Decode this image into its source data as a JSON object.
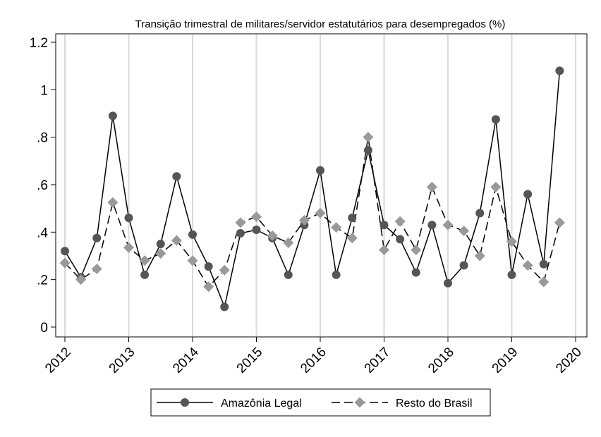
{
  "chart_data": {
    "type": "line",
    "title": "Transição trimestral de militares/servidor estatutários para desempregados (%)",
    "xlabel": "",
    "ylabel": "",
    "xlim": [
      2012,
      2020
    ],
    "ylim": [
      0,
      1.2
    ],
    "x_ticks": [
      2012,
      2013,
      2014,
      2015,
      2016,
      2017,
      2018,
      2019,
      2020
    ],
    "x_tick_labels": [
      "2012",
      "2013",
      "2014",
      "2015",
      "2016",
      "2017",
      "2018",
      "2019",
      "2020"
    ],
    "y_ticks": [
      0,
      0.2,
      0.4,
      0.6,
      0.8,
      1.0,
      1.2
    ],
    "y_tick_labels": [
      "0",
      ".2",
      ".4",
      ".6",
      ".8",
      "1",
      "1.2"
    ],
    "grid": "vertical",
    "legend_position": "bottom",
    "x": [
      2012,
      2012.25,
      2012.5,
      2012.75,
      2013,
      2013.25,
      2013.5,
      2013.75,
      2014,
      2014.25,
      2014.5,
      2014.75,
      2015,
      2015.25,
      2015.5,
      2015.75,
      2016,
      2016.25,
      2016.5,
      2016.75,
      2017,
      2017.25,
      2017.5,
      2017.75,
      2018,
      2018.25,
      2018.5,
      2018.75,
      2019,
      2019.25,
      2019.5,
      2019.75
    ],
    "series": [
      {
        "name": "Amazônia Legal",
        "color": "#555555",
        "line": "solid",
        "marker": "circle",
        "values": [
          0.32,
          0.21,
          0.375,
          0.89,
          0.46,
          0.22,
          0.35,
          0.635,
          0.39,
          0.255,
          0.085,
          0.395,
          0.41,
          0.375,
          0.22,
          0.43,
          0.66,
          0.22,
          0.46,
          0.745,
          0.43,
          0.37,
          0.23,
          0.43,
          0.185,
          0.26,
          0.48,
          0.875,
          0.22,
          0.56,
          0.265,
          1.08
        ]
      },
      {
        "name": "Resto do Brasil",
        "color": "#999999",
        "line": "dashed",
        "marker": "diamond",
        "values": [
          0.27,
          0.2,
          0.245,
          0.525,
          0.335,
          0.28,
          0.31,
          0.365,
          0.28,
          0.17,
          0.24,
          0.44,
          0.465,
          0.385,
          0.355,
          0.45,
          0.48,
          0.42,
          0.375,
          0.8,
          0.325,
          0.445,
          0.325,
          0.59,
          0.43,
          0.405,
          0.3,
          0.59,
          0.36,
          0.26,
          0.19,
          0.44
        ]
      }
    ]
  }
}
